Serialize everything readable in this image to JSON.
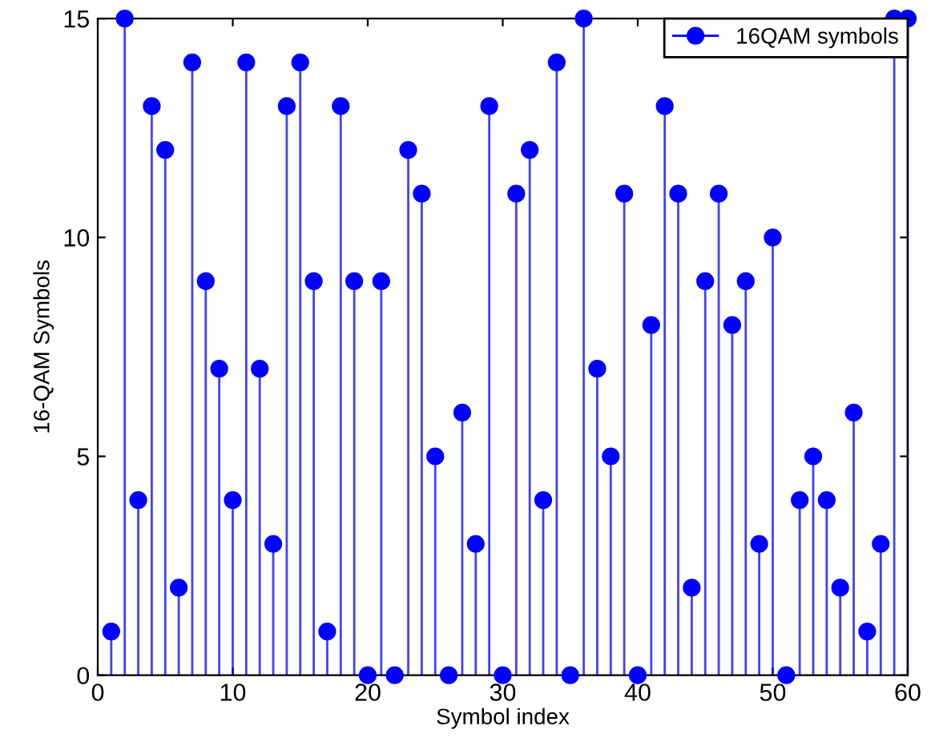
{
  "chart_data": {
    "type": "lollipop",
    "xlabel": "Symbol index",
    "ylabel": "16-QAM Symbols",
    "x": [
      1,
      2,
      3,
      4,
      5,
      6,
      7,
      8,
      9,
      10,
      11,
      12,
      13,
      14,
      15,
      16,
      17,
      18,
      19,
      20,
      21,
      22,
      23,
      24,
      25,
      26,
      27,
      28,
      29,
      30,
      31,
      32,
      33,
      34,
      35,
      36,
      37,
      38,
      39,
      40,
      41,
      42,
      43,
      44,
      45,
      46,
      47,
      48,
      49,
      50,
      51,
      52,
      53,
      54,
      55,
      56,
      57,
      58,
      59,
      60
    ],
    "series": [
      {
        "name": "16QAM symbols",
        "color": "#0000ff",
        "values": [
          1,
          15,
          4,
          13,
          12,
          2,
          14,
          9,
          7,
          4,
          14,
          7,
          3,
          13,
          14,
          9,
          1,
          13,
          9,
          0,
          9,
          0,
          12,
          11,
          5,
          0,
          6,
          3,
          13,
          0,
          11,
          12,
          4,
          14,
          0,
          15,
          7,
          5,
          11,
          0,
          8,
          13,
          11,
          2,
          9,
          11,
          8,
          9,
          3,
          10,
          0,
          4,
          5,
          4,
          2,
          6,
          1,
          3,
          15,
          15
        ]
      }
    ],
    "xlim": [
      0,
      60
    ],
    "ylim": [
      0,
      15
    ],
    "xticks": [
      0,
      10,
      20,
      30,
      40,
      50,
      60
    ],
    "yticks": [
      0,
      5,
      10,
      15
    ],
    "legend": "top right",
    "marker": "circle",
    "grid": false
  }
}
